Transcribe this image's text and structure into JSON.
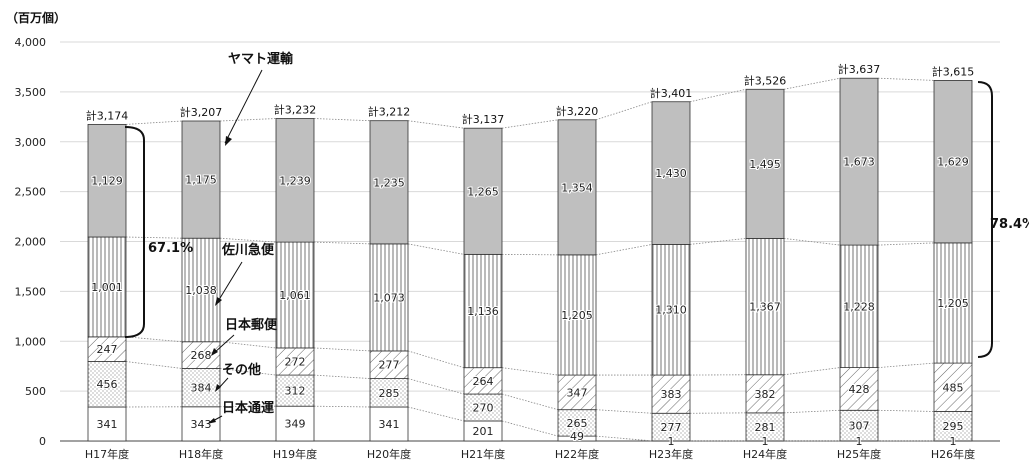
{
  "chart_data": {
    "type": "bar",
    "stacked": true,
    "unit_label": "（百万個）",
    "categories": [
      "H17年度",
      "H18年度",
      "H19年度",
      "H20年度",
      "H21年度",
      "H22年度",
      "H23年度",
      "H24年度",
      "H25年度",
      "H26年度"
    ],
    "ylim": [
      0,
      4000
    ],
    "yticks": [
      "0",
      "500",
      "1,000",
      "1,500",
      "2,000",
      "2,500",
      "3,000",
      "3,500",
      "4,000"
    ],
    "grid": true,
    "series": [
      {
        "name": "日本通運",
        "values": [
          341,
          343,
          349,
          341,
          201,
          49,
          1,
          1,
          1,
          1
        ],
        "labels": [
          "341",
          "343",
          "349",
          "341",
          "201",
          "49",
          "1",
          "1",
          "1",
          "1"
        ],
        "fill": "white"
      },
      {
        "name": "その他",
        "values": [
          456,
          384,
          312,
          285,
          270,
          265,
          277,
          281,
          307,
          295
        ],
        "labels": [
          "456",
          "384",
          "312",
          "285",
          "270",
          "265",
          "277",
          "281",
          "307",
          "295"
        ],
        "fill": "dots"
      },
      {
        "name": "日本郵便",
        "values": [
          247,
          268,
          272,
          277,
          264,
          347,
          383,
          382,
          428,
          485
        ],
        "labels": [
          "247",
          "268",
          "272",
          "277",
          "264",
          "347",
          "383",
          "382",
          "428",
          "485"
        ],
        "fill": "diag"
      },
      {
        "name": "佐川急便",
        "values": [
          1001,
          1038,
          1061,
          1073,
          1136,
          1205,
          1310,
          1367,
          1228,
          1205
        ],
        "labels": [
          "1,001",
          "1,038",
          "1,061",
          "1,073",
          "1,136",
          "1,205",
          "1,310",
          "1,367",
          "1,228",
          "1,205"
        ],
        "fill": "vlines"
      },
      {
        "name": "ヤマト運輸",
        "values": [
          1129,
          1175,
          1239,
          1235,
          1265,
          1354,
          1430,
          1495,
          1673,
          1629
        ],
        "labels": [
          "1,129",
          "1,175",
          "1,239",
          "1,235",
          "1,265",
          "1,354",
          "1,430",
          "1,495",
          "1,673",
          "1,629"
        ],
        "fill": "gray"
      }
    ],
    "totals": [
      "計3,174",
      "計3,207",
      "計3,232",
      "計3,212",
      "計3,137",
      "計3,220",
      "計3,401",
      "計3,526",
      "計3,637",
      "計3,615"
    ],
    "annotations": [
      {
        "id": "share-h17",
        "text": "67.1%"
      },
      {
        "id": "share-h26",
        "text": "78.4%"
      }
    ]
  }
}
